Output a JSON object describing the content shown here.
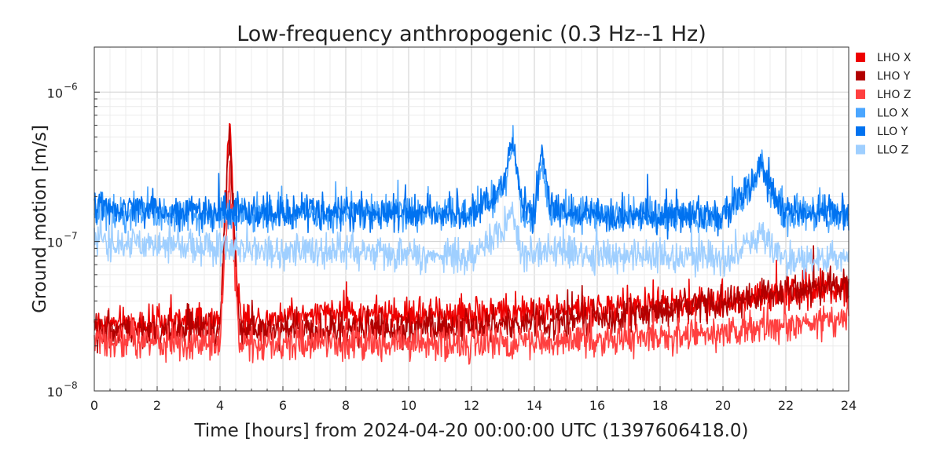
{
  "chart_data": {
    "type": "line",
    "title": "Low-frequency anthropogenic (0.3 Hz--1 Hz)",
    "xlabel": "Time [hours] from 2024-04-20 00:00:00 UTC (1397606418.0)",
    "ylabel": "Ground motion [m/s]",
    "xlim": [
      0,
      24
    ],
    "ylim": [
      1e-08,
      2e-06
    ],
    "yscale": "log",
    "grid": true,
    "legend_position": "right",
    "x_ticks": [
      "0",
      "2",
      "4",
      "6",
      "8",
      "10",
      "12",
      "14",
      "16",
      "18",
      "20",
      "22",
      "24"
    ],
    "y_ticks": [
      {
        "value": 1e-08,
        "base": "10",
        "exp": "−8"
      },
      {
        "value": 1e-07,
        "base": "10",
        "exp": "−7"
      },
      {
        "value": 1e-06,
        "base": "10",
        "exp": "−6"
      }
    ],
    "series": [
      {
        "name": "LHO X",
        "color": "#ee0000",
        "x": [
          0,
          2,
          4,
          4.3,
          4.6,
          6,
          8,
          10,
          12,
          14,
          16,
          18,
          20,
          22,
          24
        ],
        "y": [
          2.8e-08,
          2.8e-08,
          2.9e-08,
          6.8e-07,
          3e-08,
          3.1e-08,
          3.3e-08,
          3.2e-08,
          3.3e-08,
          3.4e-08,
          3.5e-08,
          3.7e-08,
          3.9e-08,
          4.5e-08,
          5e-08
        ]
      },
      {
        "name": "LHO Y",
        "color": "#b20000",
        "x": [
          0,
          2,
          4,
          4.3,
          4.6,
          6,
          8,
          10,
          12,
          14,
          16,
          18,
          20,
          22,
          24
        ],
        "y": [
          2.5e-08,
          2.5e-08,
          2.6e-08,
          5e-07,
          2.6e-08,
          2.6e-08,
          2.6e-08,
          2.6e-08,
          2.7e-08,
          2.8e-08,
          3e-08,
          3.4e-08,
          3.8e-08,
          4.6e-08,
          5.2e-08
        ]
      },
      {
        "name": "LHO Z",
        "color": "#ff4040",
        "x": [
          0,
          2,
          4,
          4.3,
          4.6,
          6,
          8,
          10,
          12,
          14,
          16,
          18,
          20,
          22,
          24
        ],
        "y": [
          2.2e-08,
          2.1e-08,
          2.1e-08,
          3e-07,
          2.1e-08,
          2.1e-08,
          2.1e-08,
          2.1e-08,
          2.1e-08,
          2.1e-08,
          2.2e-08,
          2.3e-08,
          2.4e-08,
          2.7e-08,
          3e-08
        ]
      },
      {
        "name": "LLO X",
        "color": "#4ba6ff",
        "x": [
          0,
          2,
          4,
          6,
          8,
          10,
          12,
          13,
          13.3,
          13.6,
          14,
          14.25,
          14.5,
          16,
          18,
          20,
          21,
          21.2,
          21.5,
          22,
          24
        ],
        "y": [
          1.6e-07,
          1.55e-07,
          1.5e-07,
          1.5e-07,
          1.5e-07,
          1.5e-07,
          1.5e-07,
          2e-07,
          5e-07,
          1.6e-07,
          1.5e-07,
          3.6e-07,
          1.5e-07,
          1.5e-07,
          1.45e-07,
          1.45e-07,
          2.4e-07,
          3.5e-07,
          2e-07,
          1.5e-07,
          1.5e-07
        ]
      },
      {
        "name": "LLO Y",
        "color": "#0072f0",
        "x": [
          0,
          2,
          4,
          6,
          8,
          10,
          12,
          13,
          13.3,
          13.6,
          14,
          14.25,
          14.5,
          16,
          18,
          20,
          21,
          21.2,
          21.5,
          22,
          24
        ],
        "y": [
          1.7e-07,
          1.6e-07,
          1.55e-07,
          1.55e-07,
          1.55e-07,
          1.55e-07,
          1.55e-07,
          2.2e-07,
          5.2e-07,
          1.7e-07,
          1.55e-07,
          3.8e-07,
          1.6e-07,
          1.5e-07,
          1.45e-07,
          1.45e-07,
          2.6e-07,
          3.6e-07,
          2.2e-07,
          1.55e-07,
          1.55e-07
        ]
      },
      {
        "name": "LLO Z",
        "color": "#9fcfff",
        "x": [
          0,
          2,
          4,
          6,
          8,
          10,
          12,
          13,
          13.3,
          13.6,
          14,
          16,
          18,
          20,
          21,
          21.2,
          21.5,
          22,
          24
        ],
        "y": [
          1e-07,
          9.5e-08,
          9e-08,
          8.5e-08,
          8.5e-08,
          8e-08,
          8e-08,
          1.2e-07,
          1.6e-07,
          8.5e-08,
          8.5e-08,
          8e-08,
          8e-08,
          7.5e-08,
          1e-07,
          1.2e-07,
          9e-08,
          7.5e-08,
          8e-08
        ]
      }
    ]
  }
}
